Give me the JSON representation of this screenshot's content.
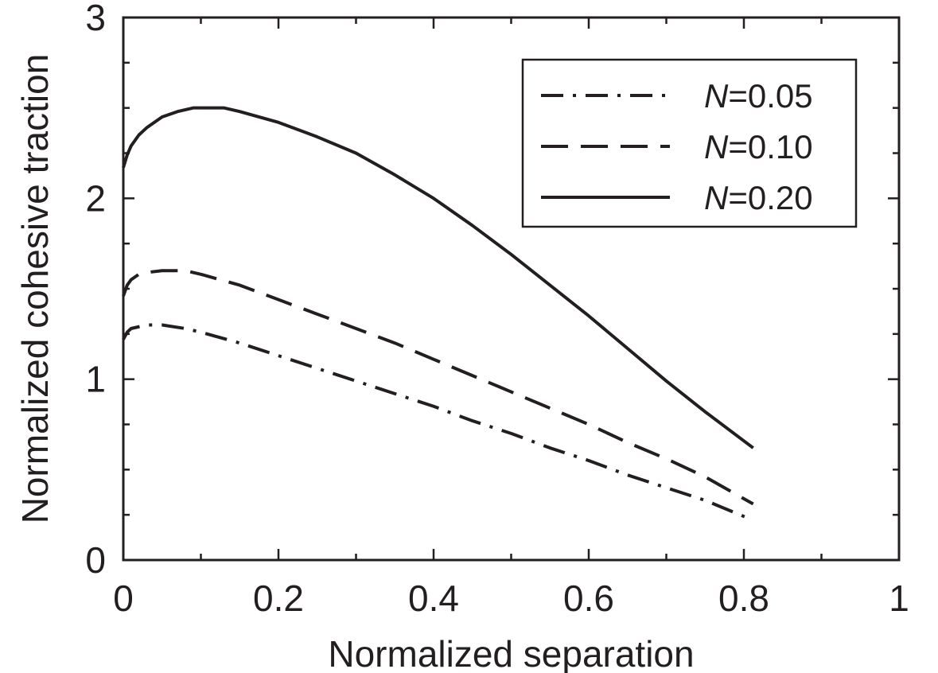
{
  "chart_data": {
    "type": "line",
    "title": "",
    "xlabel": "Normalized separation",
    "ylabel": "Normalized cohesive traction",
    "xlim": [
      0,
      1
    ],
    "ylim": [
      0,
      3
    ],
    "xticks": [
      0,
      0.2,
      0.4,
      0.6,
      0.8,
      1
    ],
    "xtick_labels": [
      "0",
      "0.2",
      "0.4",
      "0.6",
      "0.8",
      "1"
    ],
    "yticks": [
      0,
      1,
      2,
      3
    ],
    "ytick_labels": [
      "0",
      "1",
      "2",
      "3"
    ],
    "grid": false,
    "legend_position": "top-right",
    "colors": {
      "axis": "#231f20",
      "line": "#231f20"
    },
    "series": [
      {
        "name": "N = 0.05",
        "legend_n": "N",
        "legend_rest": "=0.05",
        "style": "dash-dot",
        "x": [
          0,
          0.005,
          0.01,
          0.02,
          0.03,
          0.05,
          0.08,
          0.1,
          0.15,
          0.2,
          0.25,
          0.3,
          0.35,
          0.4,
          0.45,
          0.5,
          0.55,
          0.6,
          0.65,
          0.7,
          0.75,
          0.812
        ],
        "y": [
          1.22,
          1.26,
          1.28,
          1.29,
          1.3,
          1.3,
          1.28,
          1.26,
          1.2,
          1.13,
          1.06,
          0.99,
          0.92,
          0.85,
          0.77,
          0.7,
          0.62,
          0.55,
          0.47,
          0.4,
          0.33,
          0.22
        ]
      },
      {
        "name": "N = 0.10",
        "legend_n": "N",
        "legend_rest": "=0.10",
        "style": "dashed",
        "x": [
          0,
          0.005,
          0.01,
          0.02,
          0.03,
          0.05,
          0.06,
          0.08,
          0.1,
          0.15,
          0.2,
          0.25,
          0.3,
          0.35,
          0.4,
          0.45,
          0.5,
          0.55,
          0.6,
          0.65,
          0.7,
          0.75,
          0.812
        ],
        "y": [
          1.46,
          1.52,
          1.55,
          1.58,
          1.59,
          1.6,
          1.6,
          1.6,
          1.58,
          1.52,
          1.44,
          1.36,
          1.28,
          1.2,
          1.11,
          1.02,
          0.93,
          0.84,
          0.75,
          0.65,
          0.56,
          0.46,
          0.31
        ]
      },
      {
        "name": "N = 0.20",
        "legend_n": "N",
        "legend_rest": "=0.20",
        "style": "solid",
        "x": [
          0,
          0.005,
          0.01,
          0.02,
          0.03,
          0.05,
          0.07,
          0.09,
          0.11,
          0.13,
          0.15,
          0.2,
          0.25,
          0.3,
          0.35,
          0.4,
          0.45,
          0.5,
          0.55,
          0.6,
          0.65,
          0.7,
          0.75,
          0.812
        ],
        "y": [
          2.17,
          2.24,
          2.29,
          2.35,
          2.39,
          2.45,
          2.48,
          2.5,
          2.5,
          2.5,
          2.48,
          2.42,
          2.34,
          2.25,
          2.13,
          2.0,
          1.85,
          1.69,
          1.52,
          1.35,
          1.17,
          0.99,
          0.82,
          0.62
        ]
      }
    ]
  }
}
